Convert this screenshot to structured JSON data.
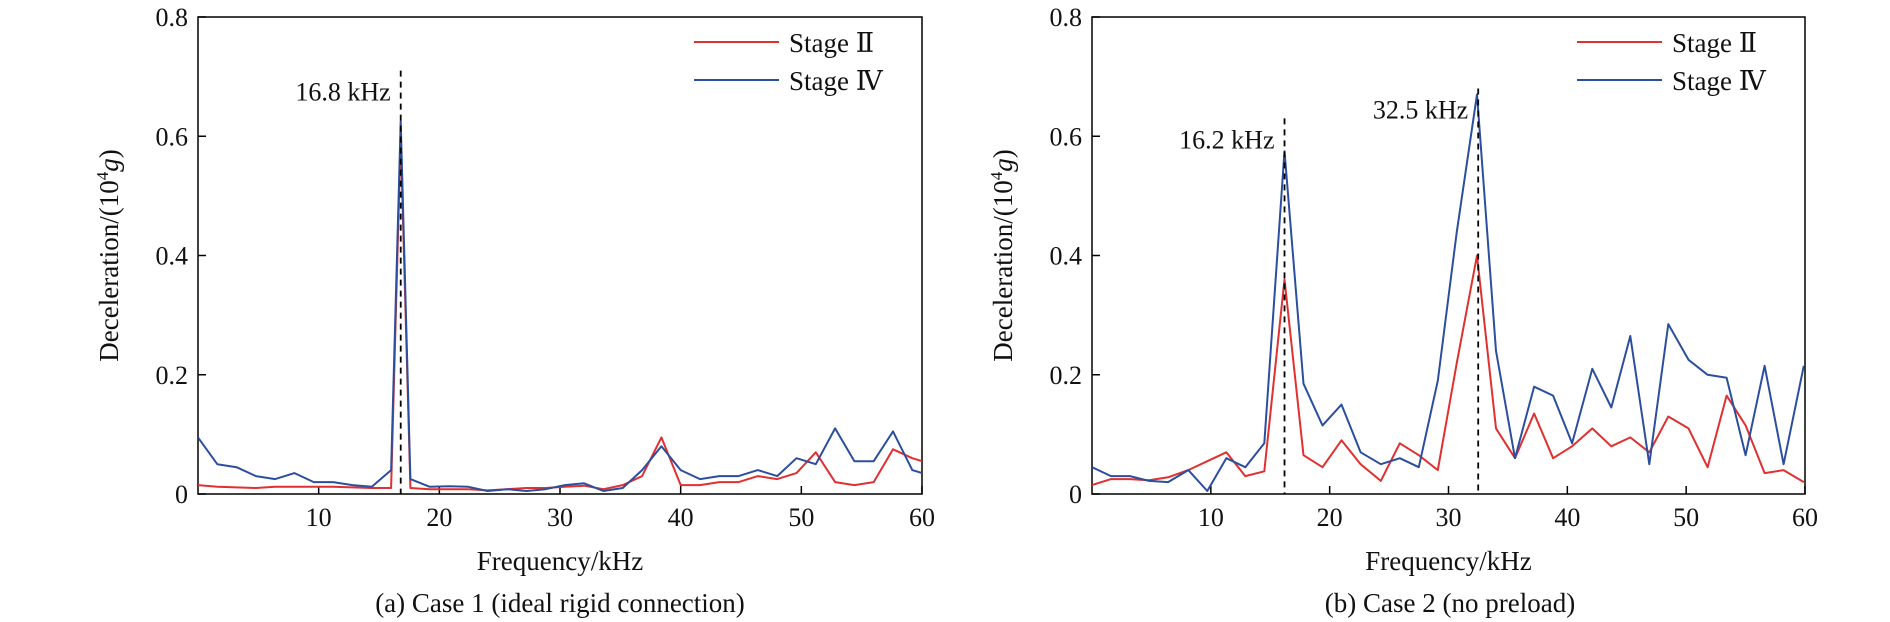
{
  "figure": {
    "colors": {
      "stage2": "#e03030",
      "stage4": "#2b4f9e",
      "axis": "#000000"
    }
  },
  "chart_data": [
    {
      "type": "line",
      "caption": "(a) Case 1 (ideal rigid connection)",
      "xlabel": "Frequency/kHz",
      "ylabel_main": "Deceleration/(10",
      "ylabel_sup": "4",
      "ylabel_unit": "g",
      "ylabel_close": ")",
      "xlim": [
        0,
        60
      ],
      "ylim": [
        0,
        0.8
      ],
      "xticks": [
        10,
        20,
        30,
        40,
        50,
        60
      ],
      "yticks": [
        0,
        0.2,
        0.4,
        0.6,
        0.8
      ],
      "ytick_labels": [
        "0",
        "0.2",
        "0.4",
        "0.6",
        "0.8"
      ],
      "legend": {
        "position": "top-right",
        "entries": [
          "Stage Ⅱ",
          "Stage Ⅳ"
        ]
      },
      "annotations": [
        {
          "x": 16.8,
          "y_top": 0.71,
          "label": "16.8 kHz"
        }
      ],
      "series": [
        {
          "name": "Stage Ⅱ",
          "x": [
            0,
            1.6,
            3.2,
            4.8,
            6.4,
            8.0,
            9.6,
            11.2,
            12.8,
            14.4,
            16.0,
            16.8,
            17.6,
            19.2,
            20.8,
            22.4,
            24.0,
            25.6,
            27.2,
            28.8,
            30.4,
            32.0,
            33.6,
            35.2,
            36.8,
            38.4,
            40.0,
            41.6,
            43.2,
            44.8,
            46.4,
            48.0,
            49.6,
            51.2,
            52.8,
            54.4,
            56.0,
            57.6,
            59.2,
            60.0
          ],
          "values": [
            0.015,
            0.012,
            0.011,
            0.01,
            0.012,
            0.012,
            0.012,
            0.012,
            0.011,
            0.01,
            0.01,
            0.6,
            0.01,
            0.008,
            0.008,
            0.008,
            0.006,
            0.008,
            0.01,
            0.01,
            0.012,
            0.014,
            0.008,
            0.015,
            0.03,
            0.095,
            0.015,
            0.015,
            0.02,
            0.02,
            0.03,
            0.025,
            0.035,
            0.07,
            0.02,
            0.015,
            0.02,
            0.075,
            0.06,
            0.055
          ]
        },
        {
          "name": "Stage Ⅳ",
          "x": [
            0,
            1.6,
            3.2,
            4.8,
            6.4,
            8.0,
            9.6,
            11.2,
            12.8,
            14.4,
            16.0,
            16.8,
            17.6,
            19.2,
            20.8,
            22.4,
            24.0,
            25.6,
            27.2,
            28.8,
            30.4,
            32.0,
            33.6,
            35.2,
            36.8,
            38.4,
            40.0,
            41.6,
            43.2,
            44.8,
            46.4,
            48.0,
            49.6,
            51.2,
            52.8,
            54.4,
            56.0,
            57.6,
            59.2,
            60.0
          ],
          "values": [
            0.095,
            0.05,
            0.045,
            0.03,
            0.025,
            0.035,
            0.02,
            0.02,
            0.015,
            0.012,
            0.04,
            0.625,
            0.025,
            0.012,
            0.013,
            0.012,
            0.005,
            0.008,
            0.005,
            0.008,
            0.015,
            0.018,
            0.005,
            0.01,
            0.04,
            0.08,
            0.04,
            0.025,
            0.03,
            0.03,
            0.04,
            0.03,
            0.06,
            0.05,
            0.11,
            0.055,
            0.055,
            0.105,
            0.04,
            0.035
          ]
        }
      ]
    },
    {
      "type": "line",
      "caption": "(b) Case 2 (no preload)",
      "xlabel": "Frequency/kHz",
      "ylabel_main": "Deceleration/(10",
      "ylabel_sup": "4",
      "ylabel_unit": "g",
      "ylabel_close": ")",
      "xlim": [
        0,
        60
      ],
      "ylim": [
        0,
        0.8
      ],
      "xticks": [
        10,
        20,
        30,
        40,
        50,
        60
      ],
      "yticks": [
        0,
        0.2,
        0.4,
        0.6,
        0.8
      ],
      "ytick_labels": [
        "0",
        "0.2",
        "0.4",
        "0.6",
        "0.8"
      ],
      "legend": {
        "position": "top-right",
        "entries": [
          "Stage Ⅱ",
          "Stage Ⅳ"
        ]
      },
      "annotations": [
        {
          "x": 16.2,
          "y_top": 0.63,
          "label": "16.2 kHz"
        },
        {
          "x": 32.5,
          "y_top": 0.68,
          "label": "32.5 kHz"
        }
      ],
      "series": [
        {
          "name": "Stage Ⅱ",
          "x": [
            0,
            1.6,
            3.2,
            4.8,
            6.4,
            8.1,
            9.7,
            11.3,
            12.9,
            14.5,
            16.2,
            17.8,
            19.4,
            21.0,
            22.6,
            24.3,
            25.9,
            27.5,
            29.1,
            30.7,
            32.4,
            34.0,
            35.6,
            37.2,
            38.8,
            40.4,
            42.1,
            43.7,
            45.3,
            46.9,
            48.5,
            50.2,
            51.8,
            53.4,
            55.0,
            56.6,
            58.2,
            59.9
          ],
          "values": [
            0.015,
            0.025,
            0.025,
            0.023,
            0.028,
            0.04,
            0.055,
            0.07,
            0.03,
            0.038,
            0.36,
            0.065,
            0.045,
            0.09,
            0.05,
            0.022,
            0.085,
            0.065,
            0.04,
            0.22,
            0.4,
            0.11,
            0.06,
            0.135,
            0.06,
            0.08,
            0.11,
            0.08,
            0.095,
            0.07,
            0.13,
            0.11,
            0.045,
            0.165,
            0.115,
            0.035,
            0.04,
            0.02
          ]
        },
        {
          "name": "Stage Ⅳ",
          "x": [
            0,
            1.6,
            3.2,
            4.8,
            6.4,
            8.1,
            9.7,
            11.3,
            12.9,
            14.5,
            16.2,
            17.8,
            19.4,
            21.0,
            22.6,
            24.3,
            25.9,
            27.5,
            29.1,
            30.7,
            32.4,
            34.0,
            35.6,
            37.2,
            38.8,
            40.4,
            42.1,
            43.7,
            45.3,
            46.9,
            48.5,
            50.2,
            51.8,
            53.4,
            55.0,
            56.6,
            58.2,
            59.9
          ],
          "values": [
            0.045,
            0.03,
            0.03,
            0.022,
            0.02,
            0.04,
            0.005,
            0.06,
            0.045,
            0.085,
            0.575,
            0.185,
            0.115,
            0.15,
            0.07,
            0.05,
            0.06,
            0.045,
            0.19,
            0.44,
            0.67,
            0.24,
            0.06,
            0.18,
            0.165,
            0.085,
            0.21,
            0.145,
            0.265,
            0.05,
            0.285,
            0.225,
            0.2,
            0.195,
            0.065,
            0.215,
            0.05,
            0.215
          ]
        }
      ]
    }
  ]
}
